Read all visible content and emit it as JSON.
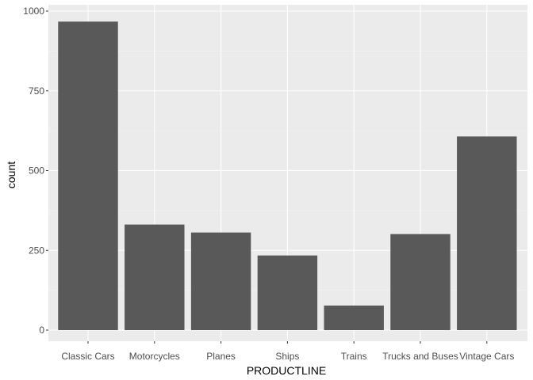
{
  "chart_data": {
    "type": "bar",
    "xlabel": "PRODUCTLINE",
    "ylabel": "count",
    "categories": [
      "Classic Cars",
      "Motorcycles",
      "Planes",
      "Ships",
      "Trains",
      "Trucks and Buses",
      "Vintage Cars"
    ],
    "values": [
      967,
      331,
      306,
      234,
      77,
      301,
      607
    ],
    "ylim": [
      0,
      1000
    ],
    "yticks": [
      0,
      250,
      500,
      750,
      1000
    ],
    "grid": true,
    "legend": "none",
    "colors": {
      "panel": "#ebebeb",
      "grid_major": "#ffffff",
      "grid_minor": "#f5f5f5",
      "bar": "#595959",
      "tick_text": "#4d4d4d",
      "title_text": "#000000"
    }
  }
}
